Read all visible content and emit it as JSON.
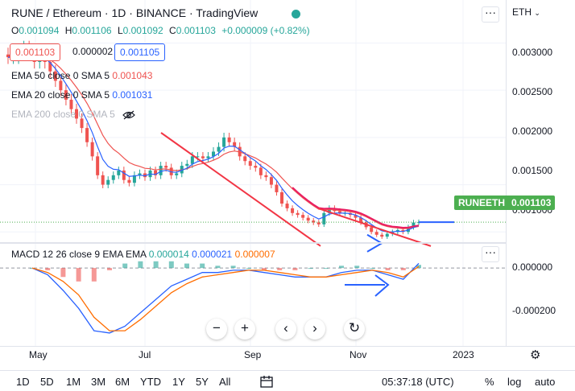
{
  "header": {
    "title": "RUNE / Ethereum · 1D · BINANCE · TradingView",
    "currency": "ETH",
    "more_icon": "more-horizontal-icon"
  },
  "ohlc": {
    "o_label": "O",
    "o": "0.001094",
    "h_label": "H",
    "h": "0.001106",
    "l_label": "L",
    "l": "0.001092",
    "c_label": "C",
    "c": "0.001103",
    "change": "+0.000009 (+0.82%)"
  },
  "price_boxes": {
    "bid": "0.001103",
    "spread": "0.000002",
    "ask": "0.001105"
  },
  "indicators": [
    {
      "label": "EMA 50 close 0 SMA 5",
      "value": "0.001043",
      "color": "#ef5350"
    },
    {
      "label": "EMA 20 close 0 SMA 5",
      "value": "0.001031",
      "color": "#2962ff"
    },
    {
      "label": "EMA 200 close 0 SMA 5",
      "value": "",
      "color": "#b2b5be"
    }
  ],
  "macd": {
    "label": "MACD 12 26 close 9 EMA EMA",
    "hist": "0.000014",
    "macd": "0.000021",
    "signal": "0.000007",
    "hist_color": "#26a69a",
    "macd_color": "#2962ff",
    "signal_color": "#ff6d00"
  },
  "price_axis": [
    "0.003000",
    "0.002500",
    "0.002000",
    "0.001500",
    "0.001000"
  ],
  "macd_axis": [
    "0.000000",
    "-0.000200"
  ],
  "last_price": {
    "symbol": "RUNEETH",
    "value": "0.001103"
  },
  "time_axis": [
    "May",
    "Jul",
    "Sep",
    "Nov",
    "2023"
  ],
  "nav_buttons": {
    "zoom_out": "−",
    "zoom_in": "+",
    "left": "‹",
    "right": "›",
    "reset": "↻"
  },
  "timeframes": [
    "1D",
    "5D",
    "1M",
    "3M",
    "6M",
    "YTD",
    "1Y",
    "5Y",
    "All"
  ],
  "footer": {
    "time": "05:37:18 (UTC)",
    "percent": "%",
    "log": "log",
    "auto": "auto"
  },
  "colors": {
    "up": "#26a69a",
    "down": "#ef5350",
    "ema50": "#ef5350",
    "ema20": "#2962ff",
    "ema200": "#e91e63",
    "trend": "#f23645",
    "arrow": "#2962ff",
    "last": "#4caf50"
  },
  "chart_data": [
    {
      "type": "candlestick",
      "title": "RUNE / Ethereum · 1D · BINANCE",
      "ylim": [
        0.0009,
        0.0032
      ],
      "y_ticks": [
        0.001,
        0.0015,
        0.002,
        0.0025,
        0.003
      ],
      "x_ticks": [
        "May",
        "Jul",
        "Sep",
        "Nov",
        "2023"
      ],
      "close": [
        0.00285,
        0.00285,
        0.0029,
        0.00295,
        0.0029,
        0.0028,
        0.00285,
        0.0028,
        0.0027,
        0.0026,
        0.0025,
        0.0024,
        0.0023,
        0.0022,
        0.0021,
        0.00195,
        0.0018,
        0.0016,
        0.0015,
        0.00155,
        0.0016,
        0.00165,
        0.00155,
        0.00152,
        0.0016,
        0.00162,
        0.00158,
        0.00165,
        0.0016,
        0.0017,
        0.00168,
        0.0016,
        0.00162,
        0.0017,
        0.00172,
        0.0018,
        0.0018,
        0.00178,
        0.0018,
        0.00185,
        0.0019,
        0.002,
        0.00195,
        0.0019,
        0.0018,
        0.00175,
        0.0017,
        0.00168,
        0.0016,
        0.00158,
        0.0015,
        0.00142,
        0.0013,
        0.00125,
        0.0012,
        0.00118,
        0.00115,
        0.00112,
        0.0011,
        0.00108,
        0.0012,
        0.00125,
        0.00122,
        0.0012,
        0.0012,
        0.00118,
        0.00115,
        0.0011,
        0.00105,
        0.001,
        0.00097,
        0.00095,
        0.00098,
        0.001,
        0.00102,
        0.001,
        0.00105,
        0.0011,
        0.001103
      ],
      "ema50_last": 0.001043,
      "ema20_last": 0.001031,
      "last": 0.001103
    },
    {
      "type": "macd",
      "title": "MACD 12 26 close 9 EMA EMA",
      "ylim": [
        -0.00033,
        4e-05
      ],
      "y_ticks": [
        0,
        -0.0002
      ],
      "macd": [
        0,
        -3e-05,
        -0.0001,
        -0.00018,
        -0.00028,
        -0.00029,
        -0.00026,
        -0.0002,
        -0.00014,
        -8e-05,
        -5e-05,
        -2e-05,
        -2e-05,
        -1e-05,
        -1e-05,
        -2e-05,
        -3e-05,
        -4e-05,
        -4e-05,
        -4e-05,
        -2e-05,
        -1e-05,
        -1e-05,
        -3e-05,
        -5e-05,
        2.1e-05
      ],
      "signal": [
        0,
        -2e-05,
        -6e-05,
        -0.00012,
        -0.00022,
        -0.00028,
        -0.00028,
        -0.00023,
        -0.00017,
        -0.00011,
        -7e-05,
        -4e-05,
        -3e-05,
        -2e-05,
        -1e-05,
        -1e-05,
        -2e-05,
        -3e-05,
        -4e-05,
        -4e-05,
        -3e-05,
        -2e-05,
        -1e-05,
        -2e-05,
        -4e-05,
        7e-06
      ],
      "histogram": [
        0,
        -1e-05,
        -4e-05,
        -6e-05,
        -6e-05,
        -1e-05,
        2e-05,
        3e-05,
        3e-05,
        3e-05,
        2e-05,
        2e-05,
        1e-05,
        1e-05,
        0,
        -1e-05,
        -1e-05,
        -1e-05,
        0,
        0,
        1e-05,
        1e-05,
        0,
        -1e-05,
        -1e-05,
        1.4e-05
      ]
    }
  ]
}
